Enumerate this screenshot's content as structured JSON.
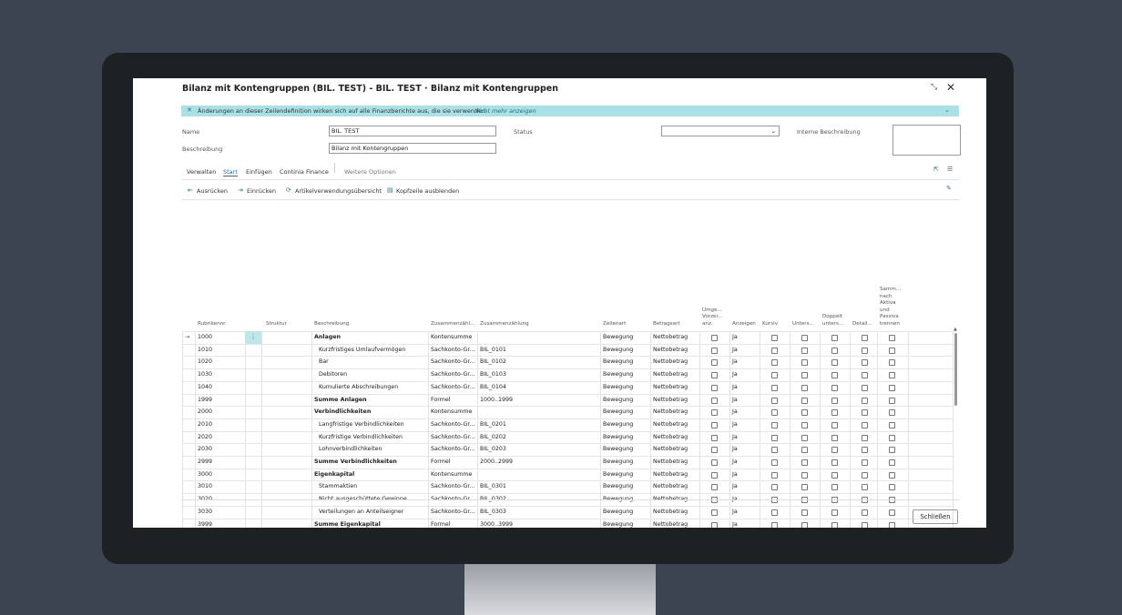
{
  "dialog": {
    "title": "Bilanz mit Kontengruppen (BIL. TEST) - BIL. TEST · Bilanz mit Kontengruppen",
    "banner": {
      "text": "Änderungen an dieser Zeilendefinition wirken sich auf alle Finanzberichte aus, die sie verwenden.",
      "link": "Nicht mehr anzeigen"
    },
    "fields": {
      "name_label": "Name",
      "name_value": "BIL. TEST",
      "beschreibung_label": "Beschreibung",
      "beschreibung_value": "Bilanz mit Kontengruppen",
      "status_label": "Status",
      "interne_label": "Interne Beschreibung"
    },
    "tabs": [
      "Verwalten",
      "Start",
      "Einfügen",
      "Continia Finance",
      "Weitere Optionen"
    ],
    "actions": [
      "Ausrücken",
      "Einrücken",
      "Artikelverwendungsübersicht",
      "Kopfzeile ausblenden"
    ],
    "table": {
      "columns": [
        "Rubrikennr.",
        "Struktur",
        "Beschreibung",
        "Zusammenzähl...",
        "Zusammenzählung",
        "Zeilenart",
        "Betragsart",
        "Umge...\nVorzei...\nanz.",
        "Anzeigen",
        "Kursiv",
        "Unters...",
        "Doppelt\nunters...",
        "Detail...",
        "Samm...\nnach\nAktiva\nund\nPassiva\ntrennen"
      ],
      "rows": [
        {
          "nr": "1000",
          "beschreibung": "Anlagen",
          "art": "Kontensumme",
          "zeilenart": "Bewegung",
          "betragsart": "Nettobetrag",
          "anzeigen": "Ja",
          "bold": true
        },
        {
          "nr": "1010",
          "beschreibung": "Kurzfristiges Umlaufvermögen",
          "art": "Sachkonto-Gr...",
          "zusammenzaehlung": "BIL_0101",
          "zeilenart": "Bewegung",
          "betragsart": "Nettobetrag",
          "anzeigen": "Ja",
          "bold": false
        },
        {
          "nr": "1020",
          "beschreibung": "Bar",
          "art": "Sachkonto-Gr...",
          "zusammenzaehlung": "BIL_0102",
          "zeilenart": "Bewegung",
          "betragsart": "Nettobetrag",
          "anzeigen": "Ja",
          "bold": false
        },
        {
          "nr": "1030",
          "beschreibung": "Debitoren",
          "art": "Sachkonto-Gr...",
          "zusammenzaehlung": "BIL_0103",
          "zeilenart": "Bewegung",
          "betragsart": "Nettobetrag",
          "anzeigen": "Ja",
          "bold": false
        },
        {
          "nr": "1040",
          "beschreibung": "Kumulierte Abschreibungen",
          "art": "Sachkonto-Gr...",
          "zusammenzaehlung": "BIL_0104",
          "zeilenart": "Bewegung",
          "betragsart": "Nettobetrag",
          "anzeigen": "Ja",
          "bold": false
        },
        {
          "nr": "1999",
          "beschreibung": "Summe Anlagen",
          "art": "Formel",
          "zusammenzaehlung": "1000..1999",
          "zeilenart": "Bewegung",
          "betragsart": "Nettobetrag",
          "anzeigen": "Ja",
          "bold": true
        },
        {
          "nr": "2000",
          "beschreibung": "Verbindlichkeiten",
          "art": "Kontensumme",
          "zeilenart": "Bewegung",
          "betragsart": "Nettobetrag",
          "anzeigen": "Ja",
          "bold": true
        },
        {
          "nr": "2010",
          "beschreibung": "Langfristige Verbindlichkeiten",
          "art": "Sachkonto-Gr...",
          "zusammenzaehlung": "BIL_0201",
          "zeilenart": "Bewegung",
          "betragsart": "Nettobetrag",
          "anzeigen": "Ja",
          "bold": false
        },
        {
          "nr": "2020",
          "beschreibung": "Kurzfristige Verbindlichkeiten",
          "art": "Sachkonto-Gr...",
          "zusammenzaehlung": "BIL_0202",
          "zeilenart": "Bewegung",
          "betragsart": "Nettobetrag",
          "anzeigen": "Ja",
          "bold": false
        },
        {
          "nr": "2030",
          "beschreibung": "Lohnverbindlichkeiten",
          "art": "Sachkonto-Gr...",
          "zusammenzaehlung": "BIL_0203",
          "zeilenart": "Bewegung",
          "betragsart": "Nettobetrag",
          "anzeigen": "Ja",
          "bold": false
        },
        {
          "nr": "2999",
          "beschreibung": "Summe Verbindlichkeiten",
          "art": "Formel",
          "zusammenzaehlung": "2000..2999",
          "zeilenart": "Bewegung",
          "betragsart": "Nettobetrag",
          "anzeigen": "Ja",
          "bold": true
        },
        {
          "nr": "3000",
          "beschreibung": "Eigenkapital",
          "art": "Kontensumme",
          "zeilenart": "Bewegung",
          "betragsart": "Nettobetrag",
          "anzeigen": "Ja",
          "bold": true
        },
        {
          "nr": "3010",
          "beschreibung": "Stammaktien",
          "art": "Sachkonto-Gr...",
          "zusammenzaehlung": "BIL_0301",
          "zeilenart": "Bewegung",
          "betragsart": "Nettobetrag",
          "anzeigen": "Ja",
          "bold": false
        },
        {
          "nr": "3020",
          "beschreibung": "Nicht ausgeschüttete Gewinne",
          "art": "Sachkonto-Gr...",
          "zusammenzaehlung": "BIL_0302",
          "zeilenart": "Bewegung",
          "betragsart": "Nettobetrag",
          "anzeigen": "Ja",
          "bold": false
        },
        {
          "nr": "3030",
          "beschreibung": "Verteilungen an Anteilseigner",
          "art": "Sachkonto-Gr...",
          "zusammenzaehlung": "BIL_0303",
          "zeilenart": "Bewegung",
          "betragsart": "Nettobetrag",
          "anzeigen": "Ja",
          "bold": false
        },
        {
          "nr": "3999",
          "beschreibung": "Summe Eigenkapital",
          "art": "Formel",
          "zusammenzaehlung": "3000..3999",
          "zeilenart": "Bewegung",
          "betragsart": "Nettobetrag",
          "anzeigen": "Ja",
          "bold": true
        }
      ]
    },
    "close_button": "Schließen"
  }
}
